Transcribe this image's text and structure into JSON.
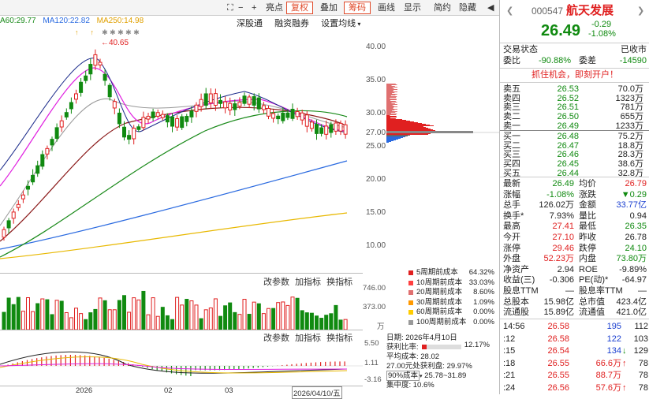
{
  "toolbar": {
    "buttons": [
      "亮点",
      "复权",
      "叠加",
      "筹码",
      "画线",
      "显示",
      "简约",
      "隐藏"
    ],
    "icons": [
      "lock-icon",
      "minus-icon",
      "plus-icon"
    ]
  },
  "ma_legend": {
    "ma60": "A60:29.77",
    "ma120": "MA120:22.82",
    "ma250": "MA250:14.98"
  },
  "sub_toolbar": [
    "深股通",
    "融资融券",
    "设置均线"
  ],
  "price_axis": [
    "40.00",
    "35.00",
    "30.00",
    "27.00",
    "25.00",
    "20.00",
    "15.00",
    "10.00"
  ],
  "peak_label": "40.65",
  "volume_panel": {
    "buttons": [
      "改参数",
      "加指标",
      "换指标"
    ],
    "axis": [
      "746.00",
      "373.00",
      "万"
    ]
  },
  "macd_panel": {
    "buttons": [
      "改参数",
      "加指标",
      "换指标"
    ],
    "axis": [
      "5.50",
      "1.11",
      "-3.16"
    ]
  },
  "date_axis": [
    "2026",
    "02",
    "03",
    "2026/04/10/五"
  ],
  "cost_legend": [
    {
      "label": "5周期前成本",
      "value": "64.32%",
      "color": "#e02020"
    },
    {
      "label": "10周期前成本",
      "value": "33.03%",
      "color": "#ff4040"
    },
    {
      "label": "20周期前成本",
      "value": "8.60%",
      "color": "#e07070"
    },
    {
      "label": "30周期前成本",
      "value": "1.09%",
      "color": "#ff9900"
    },
    {
      "label": "60周期前成本",
      "value": "0.00%",
      "color": "#ffcc00"
    },
    {
      "label": "100周期前成本",
      "value": "0.00%",
      "color": "#999999"
    }
  ],
  "cost_info": {
    "date": "日期: 2026年4月10日",
    "profit_ratio_label": "获利比率:",
    "profit_ratio": "12.17%",
    "avg_cost": "平均成本: 28.02",
    "profit_at": "27.00元处获利盘: 29.97%",
    "range_select": "90%成本",
    "range": "25.78~31.89",
    "concentration": "集中度: 10.6%"
  },
  "stock": {
    "code": "000547",
    "name": "航天发展",
    "price": "26.49",
    "change": "-0.29",
    "change_pct": "-1.08%",
    "status_label": "交易状态",
    "status": "已收市",
    "weibi_label": "委比",
    "weibi": "-90.88%",
    "weicha_label": "委差",
    "weicha": "-14590",
    "promo": "抓住机会，即刻开户！"
  },
  "asks": [
    {
      "label": "卖五",
      "price": "26.53",
      "vol": "70.0万"
    },
    {
      "label": "卖四",
      "price": "26.52",
      "vol": "1323万"
    },
    {
      "label": "卖三",
      "price": "26.51",
      "vol": "781万"
    },
    {
      "label": "卖二",
      "price": "26.50",
      "vol": "655万"
    },
    {
      "label": "卖一",
      "price": "26.49",
      "vol": "1233万"
    }
  ],
  "bids": [
    {
      "label": "买一",
      "price": "26.48",
      "vol": "75.2万"
    },
    {
      "label": "买二",
      "price": "26.47",
      "vol": "18.8万"
    },
    {
      "label": "买三",
      "price": "26.46",
      "vol": "28.3万"
    },
    {
      "label": "买四",
      "price": "26.45",
      "vol": "38.6万"
    },
    {
      "label": "买五",
      "price": "26.44",
      "vol": "32.8万"
    }
  ],
  "quote": [
    {
      "l1": "最新",
      "v1": "26.49",
      "c1": "green",
      "l2": "均价",
      "v2": "26.79",
      "c2": "red"
    },
    {
      "l1": "涨幅",
      "v1": "-1.08%",
      "c1": "green",
      "l2": "涨跌",
      "v2": "▼0.29",
      "c2": "green"
    },
    {
      "l1": "总手",
      "v1": "126.02万",
      "c1": "",
      "l2": "金额",
      "v2": "33.77亿",
      "c2": "blue"
    },
    {
      "l1": "换手*",
      "v1": "7.93%",
      "c1": "",
      "l2": "量比",
      "v2": "0.94",
      "c2": ""
    },
    {
      "l1": "最高",
      "v1": "27.41",
      "c1": "red",
      "l2": "最低",
      "v2": "26.35",
      "c2": "green"
    },
    {
      "l1": "今开",
      "v1": "27.10",
      "c1": "red",
      "l2": "昨收",
      "v2": "26.78",
      "c2": ""
    },
    {
      "l1": "涨停",
      "v1": "29.46",
      "c1": "red",
      "l2": "跌停",
      "v2": "24.10",
      "c2": "green"
    },
    {
      "l1": "外盘",
      "v1": "52.23万",
      "c1": "red",
      "l2": "内盘",
      "v2": "73.80万",
      "c2": "green"
    },
    {
      "l1": "净资产",
      "v1": "2.94",
      "c1": "",
      "l2": "ROE",
      "v2": "-9.89%",
      "c2": ""
    },
    {
      "l1": "收益(三)",
      "v1": "-0.306",
      "c1": "",
      "l2": "PE(动)*",
      "v2": "-64.97",
      "c2": ""
    },
    {
      "l1": "股息TTM",
      "v1": "—",
      "c1": "",
      "l2": "股息率TTM",
      "v2": "—",
      "c2": ""
    },
    {
      "l1": "总股本",
      "v1": "15.98亿",
      "c1": "",
      "l2": "总市值",
      "v2": "423.4亿",
      "c2": ""
    },
    {
      "l1": "流通股",
      "v1": "15.89亿",
      "c1": "",
      "l2": "流通值",
      "v2": "421.0亿",
      "c2": ""
    }
  ],
  "ticks": [
    {
      "time": "14:56",
      "price": "26.58",
      "vol": "195",
      "arrow": "",
      "num": "112",
      "vc": "blue"
    },
    {
      "time": ":12",
      "price": "26.58",
      "vol": "122",
      "arrow": "",
      "num": "103",
      "vc": "blue"
    },
    {
      "time": ":15",
      "price": "26.54",
      "vol": "134",
      "arrow": "↓",
      "num": "129",
      "vc": "blue"
    },
    {
      "time": ":18",
      "price": "26.55",
      "vol": "66.6万",
      "arrow": "↑",
      "num": "78",
      "vc": "red"
    },
    {
      "time": ":21",
      "price": "26.55",
      "vol": "88.7万",
      "arrow": "",
      "num": "78",
      "vc": "red"
    },
    {
      "time": ":24",
      "price": "26.56",
      "vol": "57.6万",
      "arrow": "↑",
      "num": "78",
      "vc": "red"
    }
  ]
}
